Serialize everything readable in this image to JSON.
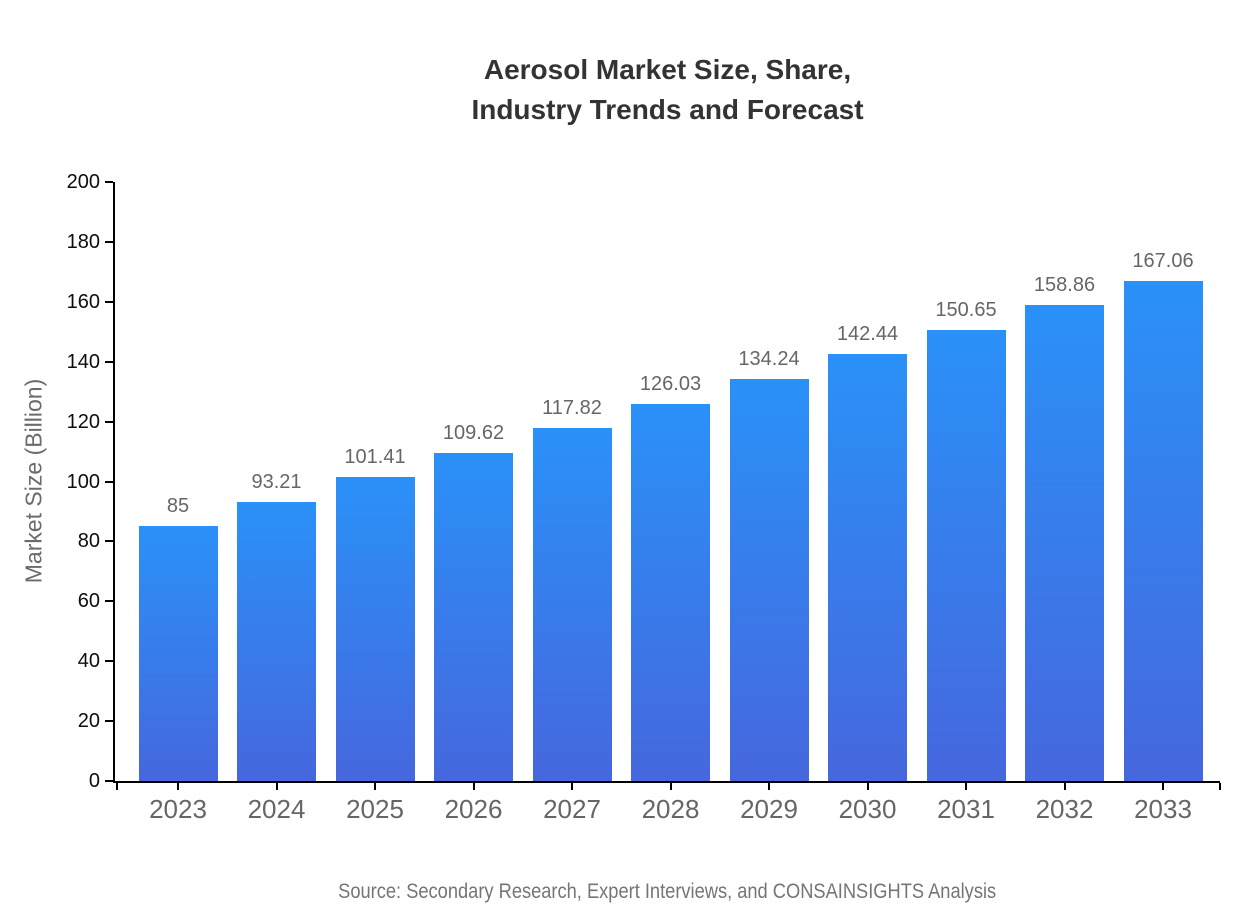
{
  "page": {
    "background": "#ffffff"
  },
  "header": {
    "title": "Aerosol Market Size, Share,\nIndustry Trends and Forecast"
  },
  "footer": {
    "source": "Source: Secondary Research, Expert Interviews, and CONSAINSIGHTS Analysis"
  },
  "colors": {
    "bar_gradient_top": "#2A91F8",
    "bar_gradient_bottom": "#4667DE",
    "axis_line": "#000000",
    "title_text": "#333333",
    "x_tick_label": "#666666",
    "y_tick_label": "#0d0d0d",
    "value_label": "#666666",
    "y_axis_title": "#6b6b6b",
    "source_text": "#757575",
    "background": "#ffffff"
  },
  "chart_data": {
    "type": "bar",
    "title": "Aerosol Market Size, Share,\nIndustry Trends and Forecast",
    "xlabel": "",
    "ylabel": "Market Size (Billion)",
    "categories": [
      "2023",
      "2024",
      "2025",
      "2026",
      "2027",
      "2028",
      "2029",
      "2030",
      "2031",
      "2032",
      "2033"
    ],
    "values": [
      85,
      93.21,
      101.41,
      109.62,
      117.82,
      126.03,
      134.24,
      142.44,
      150.65,
      158.86,
      167.06
    ],
    "value_labels": [
      "85",
      "93.21",
      "101.41",
      "109.62",
      "117.82",
      "126.03",
      "134.24",
      "142.44",
      "150.65",
      "158.86",
      "167.06"
    ],
    "ylim": [
      0,
      200
    ],
    "yticks": [
      0,
      20,
      40,
      60,
      80,
      100,
      120,
      140,
      160,
      180,
      200
    ],
    "grid": false,
    "legend": "none",
    "bar_color_top": "#2A91F8",
    "bar_color_bottom": "#4667DE",
    "source": "Source: Secondary Research, Expert Interviews, and CONSAINSIGHTS Analysis"
  }
}
